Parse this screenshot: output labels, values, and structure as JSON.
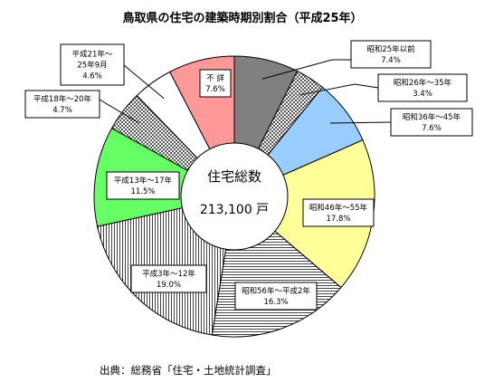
{
  "chart_data": {
    "type": "pie",
    "title": "鳥取県の住宅の建築時期別割合（平成25年）",
    "center": {
      "label": "住宅総数",
      "value": "213,100 戸"
    },
    "source": "出典：総務省「住宅・土地統計調査」",
    "slices": [
      {
        "name": "昭和25年以前",
        "value": 7.4,
        "value_label": "7.4%",
        "color": "#808080",
        "pattern": "solid"
      },
      {
        "name": "昭和26年～35年",
        "value": 3.4,
        "value_label": "3.4%",
        "color": "#c0c0c0",
        "pattern": "checker"
      },
      {
        "name": "昭和36年～45年",
        "value": 7.6,
        "value_label": "7.6%",
        "color": "#99ccff",
        "pattern": "solid"
      },
      {
        "name": "昭和46年～55年",
        "value": 17.8,
        "value_label": "17.8%",
        "color": "#ffff99",
        "pattern": "solid"
      },
      {
        "name": "昭和56年～平成2年",
        "value": 16.3,
        "value_label": "16.3%",
        "color": "#ffffff",
        "pattern": "hlines"
      },
      {
        "name": "平成3年～12年",
        "value": 19.0,
        "value_label": "19.0%",
        "color": "#ffffff",
        "pattern": "vlines"
      },
      {
        "name": "平成13年～17年",
        "value": 11.5,
        "value_label": "11.5%",
        "color": "#66ff66",
        "pattern": "solid"
      },
      {
        "name": "平成18年～20年",
        "value": 4.7,
        "value_label": "4.7%",
        "color": "#c0c0c0",
        "pattern": "checker"
      },
      {
        "name": "平成21年～25年9月",
        "name_lines": [
          "平成21年～",
          "25年9月"
        ],
        "value": 4.6,
        "value_label": "4.6%",
        "color": "#ffffff",
        "pattern": "solid"
      },
      {
        "name": "不 詳",
        "value": 7.6,
        "value_label": "7.6%",
        "color": "#ff9999",
        "pattern": "solid"
      }
    ]
  }
}
